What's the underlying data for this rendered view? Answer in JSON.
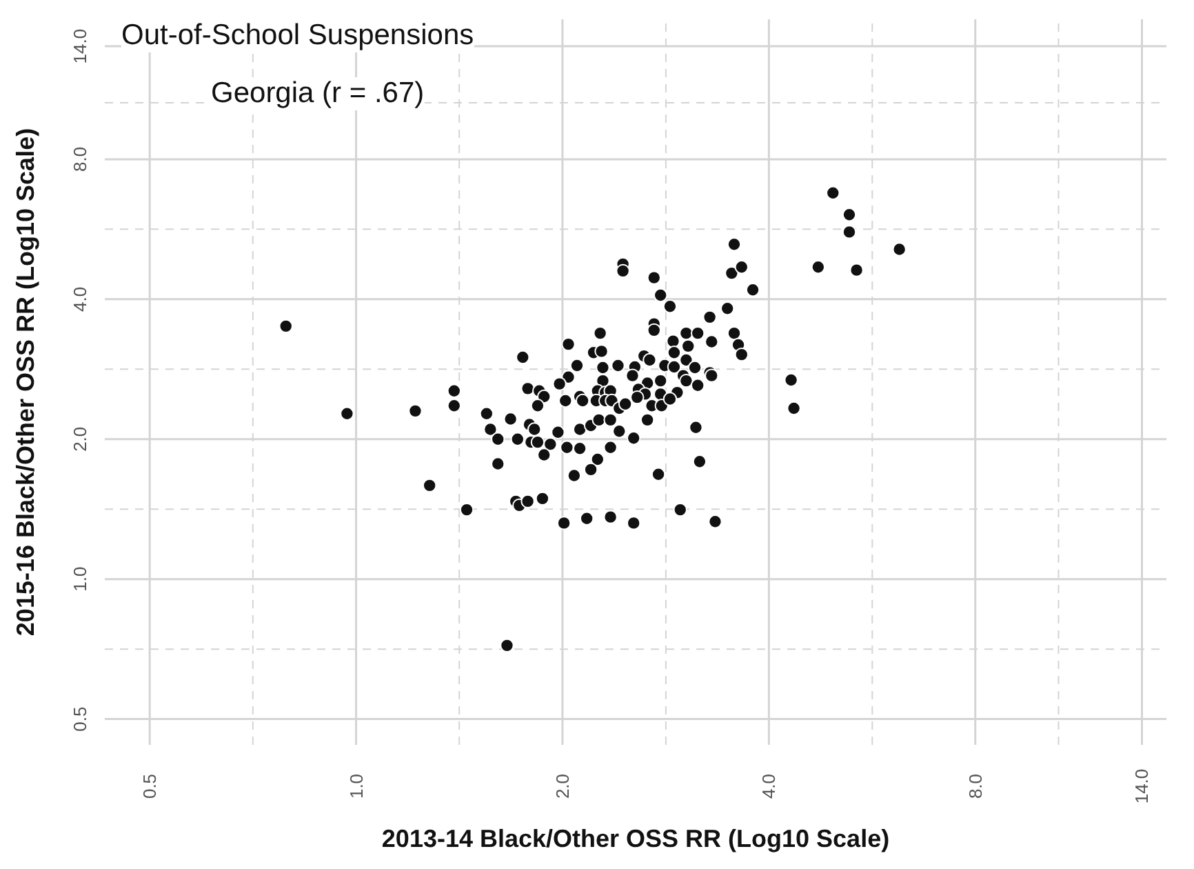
{
  "chart_data": {
    "type": "scatter",
    "title": "Out-of-School Suspensions",
    "subtitle": "Georgia (r = .67)",
    "xlabel": "2013-14 Black/Other OSS RR (Log10 Scale)",
    "ylabel": "2015-16 Black/Other OSS RR (Log10 Scale)",
    "log": "xy",
    "grid": true,
    "marker": "circle",
    "color": "#111111",
    "xlim": [
      0.43,
      15.2
    ],
    "ylim": [
      0.44,
      16
    ],
    "xticks": [
      0.5,
      {
        "value": 0.707,
        "label": null
      },
      {
        "value": 1,
        "label": "1.0"
      },
      {
        "value": 1.414,
        "label": null
      },
      {
        "value": 2,
        "label": "2.0"
      },
      {
        "value": 2.83,
        "label": null
      },
      {
        "value": 4,
        "label": "4.0"
      },
      {
        "value": 5.66,
        "label": null
      },
      {
        "value": 8,
        "label": "8.0"
      },
      {
        "value": 10.58,
        "label": null
      },
      {
        "value": 14,
        "label": "14.0"
      }
    ],
    "yticks": [
      0.5,
      {
        "value": 0.707,
        "label": null
      },
      {
        "value": 1,
        "label": "1.0"
      },
      {
        "value": 1.414,
        "label": null
      },
      {
        "value": 2,
        "label": "2.0"
      },
      {
        "value": 2.83,
        "label": null
      },
      {
        "value": 4,
        "label": "4.0"
      },
      {
        "value": 5.66,
        "label": null
      },
      {
        "value": 8,
        "label": "8.0"
      },
      {
        "value": 10.58,
        "label": null
      },
      {
        "value": 14,
        "label": "14.0"
      }
    ],
    "x": [
      0.79,
      0.97,
      1.22,
      1.39,
      1.39,
      1.28,
      1.45,
      1.66,
      2.45,
      2.45,
      2.72,
      2.78,
      2.87,
      3.28,
      2.27,
      2.04,
      2.72,
      2.72,
      3.03,
      3.15,
      2.9,
      3.05,
      2.91,
      3.03,
      2.22,
      2.28,
      1.75,
      2.1,
      2.29,
      2.41,
      2.55,
      2.63,
      2.68,
      2.82,
      2.91,
      3.12,
      3.28,
      3.0,
      2.53,
      2.04,
      1.98,
      2.29,
      2.66,
      2.78,
      3.03,
      3.15,
      1.78,
      1.85,
      1.88,
      2.25,
      2.31,
      2.35,
      2.12,
      2.14,
      2.58,
      2.64,
      2.57,
      2.78,
      2.94,
      2.02,
      2.24,
      2.31,
      2.36,
      2.7,
      2.79,
      2.87,
      2.42,
      2.47,
      1.84,
      1.55,
      1.68,
      1.57,
      1.79,
      1.82,
      1.61,
      1.72,
      1.8,
      1.84,
      1.92,
      1.97,
      2.12,
      2.2,
      2.26,
      2.35,
      2.42,
      2.54,
      2.66,
      3.13,
      2.03,
      2.12,
      1.88,
      2.35,
      2.25,
      2.2,
      1.61,
      2.08,
      2.76,
      3.17,
      1.71,
      1.73,
      1.78,
      1.87,
      2.35,
      2.97,
      2.01,
      2.17,
      2.54,
      4.96,
      5.24,
      5.24,
      6.2,
      4.72,
      5.37,
      3.56,
      3.53,
      3.65,
      3.79,
      3.48,
      3.56,
      3.61,
      3.65,
      4.31,
      4.35,
      3.34,
      3.3,
      3.3
    ],
    "values": [
      3.5,
      2.27,
      2.3,
      2.54,
      2.36,
      1.59,
      1.41,
      0.72,
      4.76,
      4.6,
      4.45,
      4.08,
      3.86,
      3.66,
      3.38,
      3.2,
      3.54,
      3.43,
      3.38,
      3.38,
      3.25,
      3.17,
      3.07,
      2.96,
      3.07,
      3.09,
      3.0,
      2.88,
      2.85,
      2.88,
      2.86,
      3.02,
      2.96,
      2.88,
      2.86,
      2.85,
      2.78,
      2.74,
      2.74,
      2.72,
      2.63,
      2.67,
      2.64,
      2.67,
      2.67,
      2.61,
      2.57,
      2.54,
      2.47,
      2.54,
      2.52,
      2.54,
      2.47,
      2.42,
      2.56,
      2.5,
      2.46,
      2.5,
      2.52,
      2.42,
      2.42,
      2.42,
      2.42,
      2.36,
      2.36,
      2.44,
      2.33,
      2.38,
      2.36,
      2.27,
      2.21,
      2.1,
      2.15,
      2.1,
      2.0,
      2.0,
      1.97,
      1.97,
      1.95,
      2.07,
      2.1,
      2.14,
      2.2,
      2.2,
      2.08,
      2.01,
      2.2,
      2.12,
      1.92,
      1.91,
      1.85,
      1.92,
      1.81,
      1.72,
      1.77,
      1.67,
      1.68,
      1.79,
      1.47,
      1.44,
      1.47,
      1.49,
      1.36,
      1.41,
      1.32,
      1.35,
      1.32,
      6.77,
      6.08,
      5.58,
      5.12,
      4.69,
      4.62,
      5.25,
      4.55,
      4.69,
      4.19,
      3.82,
      3.38,
      3.19,
      3.04,
      2.68,
      2.33,
      1.33,
      3.24,
      2.74
    ]
  }
}
